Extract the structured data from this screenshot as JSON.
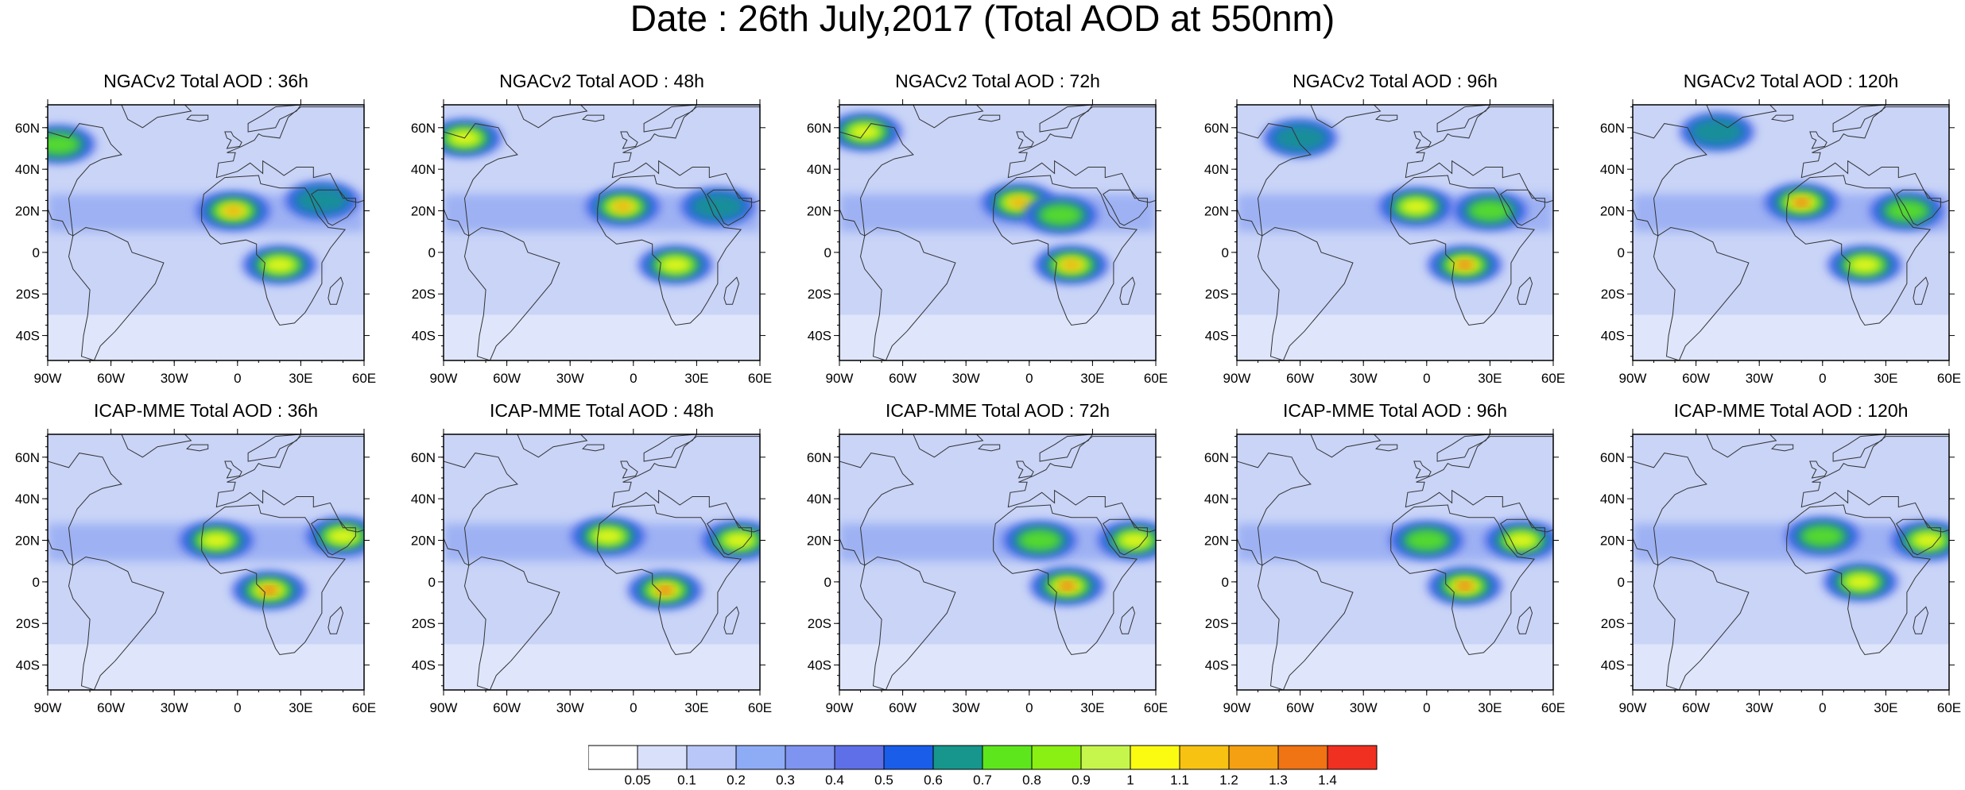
{
  "title": "Date : 26th July,2017 (Total AOD at 550nm)",
  "axes": {
    "lat_ticks": [
      {
        "value": 60,
        "label": "60N"
      },
      {
        "value": 40,
        "label": "40N"
      },
      {
        "value": 20,
        "label": "20N"
      },
      {
        "value": 0,
        "label": "0"
      },
      {
        "value": -20,
        "label": "20S"
      },
      {
        "value": -40,
        "label": "40S"
      }
    ],
    "lon_ticks": [
      {
        "value": -90,
        "label": "90W"
      },
      {
        "value": -60,
        "label": "60W"
      },
      {
        "value": -30,
        "label": "30W"
      },
      {
        "value": 0,
        "label": "0"
      },
      {
        "value": 30,
        "label": "30E"
      },
      {
        "value": 60,
        "label": "60E"
      }
    ],
    "lon_range": [
      -90,
      60
    ],
    "lat_range": [
      -52,
      71
    ]
  },
  "panels": [
    {
      "title": "NGACv2 Total AOD : 36h",
      "model": "NGACv2",
      "lead": 36,
      "plumes": [
        {
          "lon": -2,
          "lat": 20,
          "strength": 1.2
        },
        {
          "lon": 20,
          "lat": -6,
          "strength": 1.0
        },
        {
          "lon": -85,
          "lat": 52,
          "strength": 0.8
        },
        {
          "lon": 40,
          "lat": 25,
          "strength": 0.5
        }
      ]
    },
    {
      "title": "NGACv2 Total AOD : 48h",
      "model": "NGACv2",
      "lead": 48,
      "plumes": [
        {
          "lon": -5,
          "lat": 22,
          "strength": 1.2
        },
        {
          "lon": 20,
          "lat": -6,
          "strength": 0.9
        },
        {
          "lon": -80,
          "lat": 55,
          "strength": 0.9
        },
        {
          "lon": 40,
          "lat": 22,
          "strength": 0.6
        }
      ]
    },
    {
      "title": "NGACv2 Total AOD : 72h",
      "model": "NGACv2",
      "lead": 72,
      "plumes": [
        {
          "lon": -5,
          "lat": 24,
          "strength": 1.2
        },
        {
          "lon": 20,
          "lat": -6,
          "strength": 1.1
        },
        {
          "lon": -78,
          "lat": 58,
          "strength": 0.9
        },
        {
          "lon": 15,
          "lat": 18,
          "strength": 0.8
        }
      ]
    },
    {
      "title": "NGACv2 Total AOD : 96h",
      "model": "NGACv2",
      "lead": 96,
      "plumes": [
        {
          "lon": -5,
          "lat": 22,
          "strength": 1.0
        },
        {
          "lon": 18,
          "lat": -6,
          "strength": 1.3
        },
        {
          "lon": -60,
          "lat": 55,
          "strength": 0.6
        },
        {
          "lon": 30,
          "lat": 20,
          "strength": 0.7
        }
      ]
    },
    {
      "title": "NGACv2 Total AOD : 120h",
      "model": "NGACv2",
      "lead": 120,
      "plumes": [
        {
          "lon": -10,
          "lat": 24,
          "strength": 1.4
        },
        {
          "lon": 20,
          "lat": -6,
          "strength": 1.0
        },
        {
          "lon": -50,
          "lat": 58,
          "strength": 0.5
        },
        {
          "lon": 40,
          "lat": 20,
          "strength": 0.8
        }
      ]
    },
    {
      "title": "ICAP-MME Total AOD : 36h",
      "model": "ICAP-MME",
      "lead": 36,
      "plumes": [
        {
          "lon": -10,
          "lat": 20,
          "strength": 1.0
        },
        {
          "lon": 15,
          "lat": -4,
          "strength": 1.3
        },
        {
          "lon": 50,
          "lat": 22,
          "strength": 1.0
        }
      ]
    },
    {
      "title": "ICAP-MME Total AOD : 48h",
      "model": "ICAP-MME",
      "lead": 48,
      "plumes": [
        {
          "lon": -12,
          "lat": 22,
          "strength": 0.9
        },
        {
          "lon": 15,
          "lat": -4,
          "strength": 1.3
        },
        {
          "lon": 50,
          "lat": 20,
          "strength": 1.0
        }
      ]
    },
    {
      "title": "ICAP-MME Total AOD : 72h",
      "model": "ICAP-MME",
      "lead": 72,
      "plumes": [
        {
          "lon": 5,
          "lat": 20,
          "strength": 0.7
        },
        {
          "lon": 18,
          "lat": -2,
          "strength": 1.3
        },
        {
          "lon": 50,
          "lat": 20,
          "strength": 0.9
        }
      ]
    },
    {
      "title": "ICAP-MME Total AOD : 96h",
      "model": "ICAP-MME",
      "lead": 96,
      "plumes": [
        {
          "lon": 0,
          "lat": 20,
          "strength": 0.7
        },
        {
          "lon": 18,
          "lat": -2,
          "strength": 1.3
        },
        {
          "lon": 45,
          "lat": 20,
          "strength": 0.9
        }
      ]
    },
    {
      "title": "ICAP-MME Total AOD : 120h",
      "model": "ICAP-MME",
      "lead": 120,
      "plumes": [
        {
          "lon": 0,
          "lat": 22,
          "strength": 0.7
        },
        {
          "lon": 18,
          "lat": 0,
          "strength": 1.0
        },
        {
          "lon": 50,
          "lat": 20,
          "strength": 0.9
        }
      ]
    }
  ],
  "colorbar": {
    "labels": [
      "0.05",
      "0.1",
      "0.2",
      "0.3",
      "0.4",
      "0.5",
      "0.6",
      "0.7",
      "0.8",
      "0.9",
      "1",
      "1.1",
      "1.2",
      "1.3",
      "1.4"
    ],
    "colors": [
      "#ffffff",
      "#d8e0fa",
      "#b8c6f8",
      "#8eabf6",
      "#7f94f0",
      "#5e6fe8",
      "#1a5de8",
      "#16968c",
      "#5ee61c",
      "#8aef12",
      "#c6f64c",
      "#fbfb12",
      "#f8c212",
      "#f5a012",
      "#f07314",
      "#f03020"
    ]
  }
}
